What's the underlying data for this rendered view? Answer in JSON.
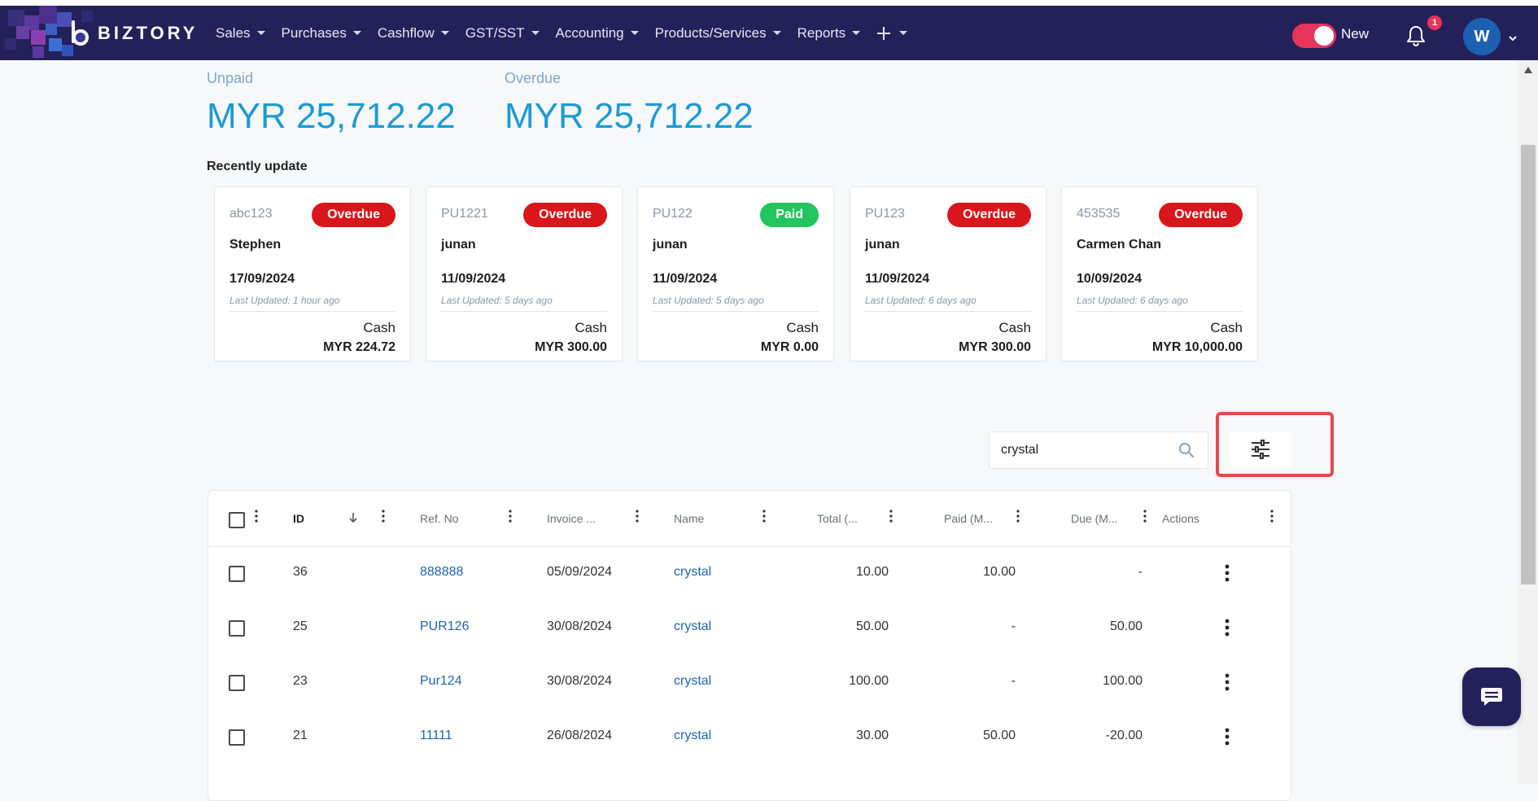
{
  "brand": {
    "name": "BIZTORY"
  },
  "nav": {
    "menu": [
      "Sales",
      "Purchases",
      "Cashflow",
      "GST/SST",
      "Accounting",
      "Products/Services",
      "Reports"
    ],
    "toggle_label": "New",
    "notification_count": "1",
    "avatar_initial": "W"
  },
  "summary": {
    "unpaid_label": "Unpaid",
    "unpaid_value": "MYR 25,712.22",
    "overdue_label": "Overdue",
    "overdue_value": "MYR 25,712.22"
  },
  "recent": {
    "title": "Recently update",
    "cards": [
      {
        "ref": "abc123",
        "status": "Overdue",
        "name": "Stephen",
        "date": "17/09/2024",
        "updated": "Last Updated: 1 hour ago",
        "method": "Cash",
        "amount": "MYR 224.72"
      },
      {
        "ref": "PU1221",
        "status": "Overdue",
        "name": "junan",
        "date": "11/09/2024",
        "updated": "Last Updated: 5 days ago",
        "method": "Cash",
        "amount": "MYR 300.00"
      },
      {
        "ref": "PU122",
        "status": "Paid",
        "name": "junan",
        "date": "11/09/2024",
        "updated": "Last Updated: 5 days ago",
        "method": "Cash",
        "amount": "MYR 0.00"
      },
      {
        "ref": "PU123",
        "status": "Overdue",
        "name": "junan",
        "date": "11/09/2024",
        "updated": "Last Updated: 6 days ago",
        "method": "Cash",
        "amount": "MYR 300.00"
      },
      {
        "ref": "453535",
        "status": "Overdue",
        "name": "Carmen Chan",
        "date": "10/09/2024",
        "updated": "Last Updated: 6 days ago",
        "method": "Cash",
        "amount": "MYR 10,000.00"
      }
    ]
  },
  "search": {
    "value": "crystal"
  },
  "colors": {
    "navbar": "#24215a",
    "accent": "#1b9ad6",
    "overdue": "#d9161b",
    "paid": "#22c55e",
    "link": "#1e63b3",
    "highlight": "#e34b4b"
  },
  "icons": {
    "search": "search-icon",
    "filter": "sliders-icon",
    "bell": "bell-icon",
    "chat": "chat-icon"
  },
  "table": {
    "headers": [
      "ID",
      "Ref. No",
      "Invoice ...",
      "Name",
      "Total (...",
      "Paid (M...",
      "Due (M...",
      "Actions"
    ],
    "rows": [
      {
        "id": "36",
        "ref": "888888",
        "date": "05/09/2024",
        "name": "crystal",
        "total": "10.00",
        "paid": "10.00",
        "due": "-"
      },
      {
        "id": "25",
        "ref": "PUR126",
        "date": "30/08/2024",
        "name": "crystal",
        "total": "50.00",
        "paid": "-",
        "due": "50.00"
      },
      {
        "id": "23",
        "ref": "Pur124",
        "date": "30/08/2024",
        "name": "crystal",
        "total": "100.00",
        "paid": "-",
        "due": "100.00"
      },
      {
        "id": "21",
        "ref": "11111",
        "date": "26/08/2024",
        "name": "crystal",
        "total": "30.00",
        "paid": "50.00",
        "due": "-20.00"
      }
    ]
  }
}
